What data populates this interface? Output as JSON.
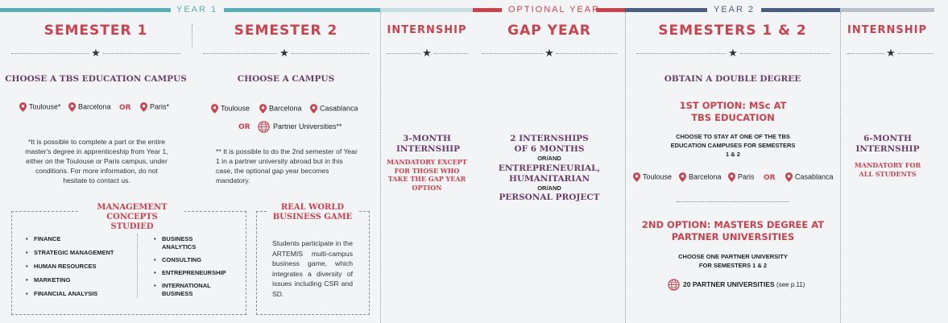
{
  "header": {
    "year1": "YEAR 1",
    "optional_year": "OPTIONAL YEAR",
    "year2": "YEAR 2",
    "colors": {
      "teal": "#58aeb4",
      "light_teal": "#c5dde3",
      "red": "#c8434e",
      "navy": "#4a5d7c",
      "grey": "#b9bfcb"
    }
  },
  "sem1": {
    "title": "SEMESTER 1",
    "subtitle": "CHOOSE A TBS EDUCATION CAMPUS",
    "campuses": [
      "Toulouse*",
      "Barcelona",
      "Paris*"
    ],
    "or": "OR",
    "note": "*It is possible to complete a part or the entire master's degree in apprenticeship from Year 1, either on the Toulouse or Paris campus, under conditions. For more information, do not hesitate to contact us.",
    "concepts_title": "MANAGEMENT CONCEPTS STUDIED",
    "concepts_left": [
      "FINANCE",
      "STRATEGIC MANAGEMENT",
      "HUMAN RESOURCES",
      "MARKETING",
      "FINANCIAL ANALYSIS"
    ],
    "concepts_right": [
      "BUSINESS ANALYTICS",
      "CONSULTING",
      "ENTREPRENEURSHIP",
      "INTERNATIONAL BUSINESS"
    ]
  },
  "sem2": {
    "title": "SEMESTER 2",
    "subtitle": "CHOOSE A CAMPUS",
    "campuses": [
      "Toulouse",
      "Barcelona",
      "Casablanca"
    ],
    "or": "OR",
    "partner": "Partner Universities**",
    "note": "** It is possible to do the 2nd semester of Year 1 in a partner university abroad but in this case, the optional gap year becomes mandatory.",
    "game_title": "REAL WORLD BUSINESS GAME",
    "game_text": "Students participate in the ARTEMIS multi-campus business game, which integrates a diversity of issues including CSR and SD."
  },
  "internship1": {
    "title": "INTERNSHIP",
    "heading": "3-MONTH INTERNSHIP",
    "note": "MANDATORY EXCEPT FOR THOSE WHO TAKE THE GAP YEAR OPTION"
  },
  "gap": {
    "title": "GAP YEAR",
    "line1": "2 INTERNSHIPS OF 6 MONTHS",
    "or1": "OR/AND",
    "line2": "ENTREPRENEURIAL, HUMANITARIAN",
    "or2": "OR/AND",
    "line3": "PERSONAL PROJECT"
  },
  "sem34": {
    "title": "SEMESTERS 1 & 2",
    "subtitle": "OBTAIN A DOUBLE DEGREE",
    "opt1_title": "1ST OPTION: MSc AT TBS EDUCATION",
    "opt1_note": "CHOOSE TO STAY AT ONE OF THE TBS EDUCATION CAMPUSES FOR SEMESTERS 1 & 2",
    "campuses": [
      "Toulouse",
      "Barcelona",
      "Paris",
      "Casablanca"
    ],
    "or": "OR",
    "opt2_title": "2ND OPTION: MASTERS DEGREE AT PARTNER UNIVERSITIES",
    "opt2_note": "CHOOSE ONE PARTNER UNIVERSITY FOR SEMESTERS 1 & 2",
    "partners": "20 PARTNER UNIVERSITIES",
    "partners_ref": "(see p.11)"
  },
  "internship2": {
    "title": "INTERNSHIP",
    "heading": "6-MONTH INTERNSHIP",
    "note": "MANDATORY FOR ALL STUDENTS"
  }
}
